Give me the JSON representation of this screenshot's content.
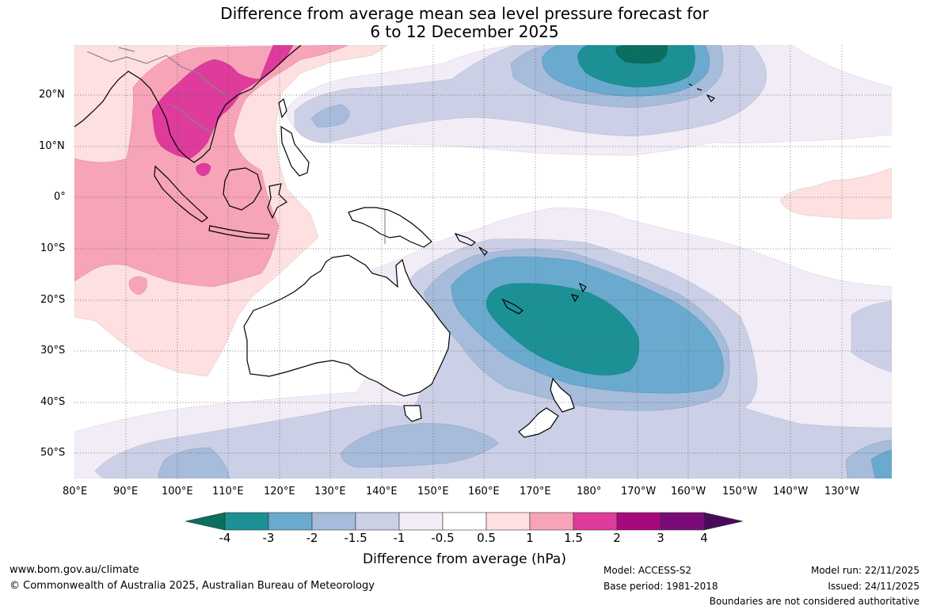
{
  "title": {
    "line1": "Difference from average mean sea level pressure forecast for",
    "line2": "6 to 12 December 2025"
  },
  "axes": {
    "lon_labels": [
      "80°E",
      "90°E",
      "100°E",
      "110°E",
      "120°E",
      "130°E",
      "140°E",
      "150°E",
      "160°E",
      "170°E",
      "180°",
      "170°W",
      "160°W",
      "150°W",
      "140°W",
      "130°W"
    ],
    "lat_labels": [
      "20°N",
      "10°N",
      "0°",
      "10°S",
      "20°S",
      "30°S",
      "40°S",
      "50°S"
    ]
  },
  "colorbar": {
    "title": "Difference from average (hPa)",
    "levels": [
      "-4",
      "-3",
      "-2",
      "-1.5",
      "-1",
      "-0.5",
      "0.5",
      "1",
      "1.5",
      "2",
      "3",
      "4"
    ],
    "colors": [
      "#0b6e5f",
      "#1b9196",
      "#6aaacf",
      "#a7bbdb",
      "#ccd0e6",
      "#f2ecf6",
      "#ffffff",
      "#fde0df",
      "#f7a3b8",
      "#de3b9c",
      "#a8087e",
      "#7b0b78",
      "#4a0a5c"
    ]
  },
  "palette": {
    "land_outline": "#000000",
    "border": "#888888",
    "grid": "#555555"
  },
  "footer": {
    "website": "www.bom.gov.au/climate",
    "copyright": "© Commonwealth of Australia 2025, Australian Bureau of Meteorology",
    "model": "Model: ACCESS-S2",
    "base_period": "Base period: 1981-2018",
    "model_run": "Model run: 22/11/2025",
    "issued": "Issued: 24/11/2025",
    "disclaimer": "Boundaries are not considered authoritative"
  }
}
